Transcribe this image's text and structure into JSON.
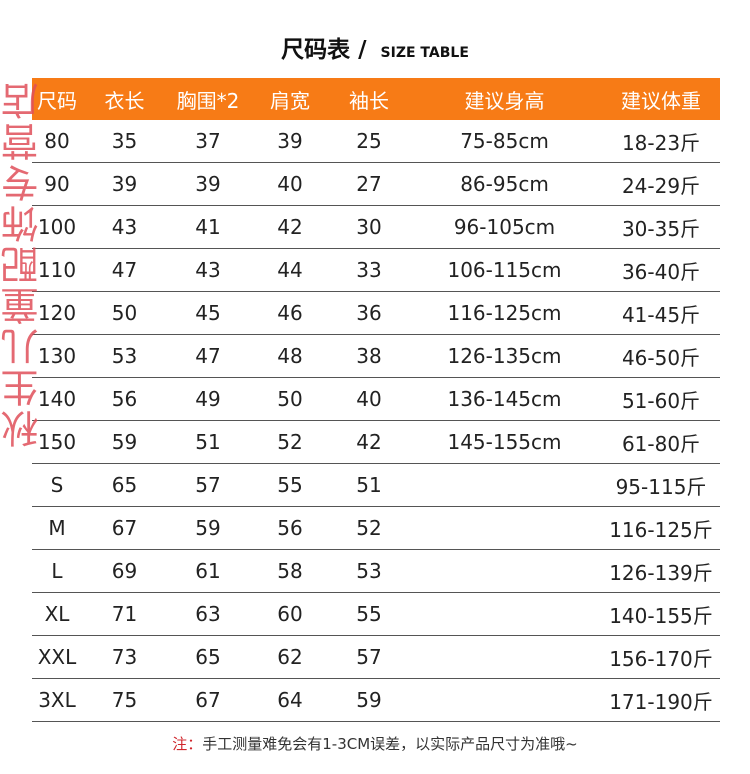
{
  "title": {
    "cn": "尺码表 /",
    "en": "SIZE TABLE"
  },
  "accent_color": "#f77b16",
  "headers": [
    "尺码",
    "衣长",
    "胸围*2",
    "肩宽",
    "袖长",
    "建议身高",
    "建议体重"
  ],
  "rows": [
    [
      "80",
      "35",
      "37",
      "39",
      "25",
      "75-85cm",
      "18-23斤"
    ],
    [
      "90",
      "39",
      "39",
      "40",
      "27",
      "86-95cm",
      "24-29斤"
    ],
    [
      "100",
      "43",
      "41",
      "42",
      "30",
      "96-105cm",
      "30-35斤"
    ],
    [
      "110",
      "47",
      "43",
      "44",
      "33",
      "106-115cm",
      "36-40斤"
    ],
    [
      "120",
      "50",
      "45",
      "46",
      "36",
      "116-125cm",
      "41-45斤"
    ],
    [
      "130",
      "53",
      "47",
      "48",
      "38",
      "126-135cm",
      "46-50斤"
    ],
    [
      "140",
      "56",
      "49",
      "50",
      "40",
      "136-145cm",
      "51-60斤"
    ],
    [
      "150",
      "59",
      "51",
      "52",
      "42",
      "145-155cm",
      "61-80斤"
    ],
    [
      "S",
      "65",
      "57",
      "55",
      "51",
      "",
      "95-115斤"
    ],
    [
      "M",
      "67",
      "59",
      "56",
      "52",
      "",
      "116-125斤"
    ],
    [
      "L",
      "69",
      "61",
      "58",
      "53",
      "",
      "126-139斤"
    ],
    [
      "XL",
      "71",
      "63",
      "60",
      "55",
      "",
      "140-155斤"
    ],
    [
      "XXL",
      "73",
      "65",
      "62",
      "57",
      "",
      "156-170斤"
    ],
    [
      "3XL",
      "75",
      "67",
      "64",
      "59",
      "",
      "171-190斤"
    ]
  ],
  "note": {
    "label": "注：",
    "text": "手工测量难免会有1-3CM误差，以实际产品尺寸为准哦~"
  },
  "watermark": "秋生儿童配饰专营店"
}
